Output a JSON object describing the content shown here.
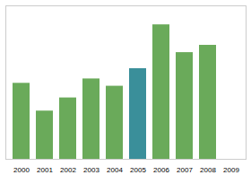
{
  "chart_data": {
    "type": "bar",
    "categories": [
      "2000",
      "2001",
      "2002",
      "2003",
      "2004",
      "2005",
      "2006",
      "2007",
      "2008",
      "2009"
    ],
    "values": [
      52,
      33,
      42,
      55,
      50,
      62,
      92,
      73,
      78,
      0
    ],
    "colors": [
      "#6aaa5a",
      "#6aaa5a",
      "#6aaa5a",
      "#6aaa5a",
      "#6aaa5a",
      "#3a8f9a",
      "#6aaa5a",
      "#6aaa5a",
      "#6aaa5a",
      "#6aaa5a"
    ],
    "ylim": [
      0,
      105
    ],
    "yticks": [],
    "grid": false,
    "tick_labels": "x"
  }
}
